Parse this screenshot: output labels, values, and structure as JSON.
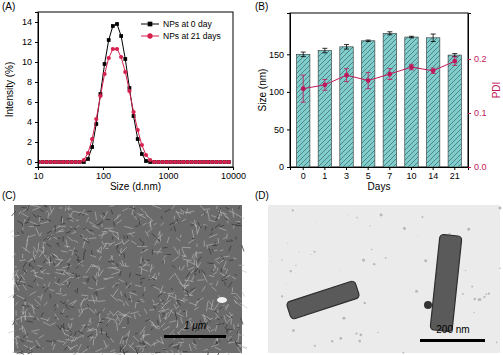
{
  "chart_data": [
    {
      "type": "line",
      "title": "(A)",
      "x_label": "Size (d.nm)",
      "y_label": "Intensity (%)",
      "log": "x",
      "xlim": [
        10,
        10000
      ],
      "xticks": [
        10,
        100,
        1000,
        10000
      ],
      "ylim": [
        -0.5,
        15
      ],
      "yticks": [
        0,
        2,
        4,
        6,
        8,
        10,
        12,
        14
      ],
      "legend": "upper right",
      "x": [
        10.1,
        11.7,
        13.54,
        15.69,
        18.17,
        21.04,
        24.36,
        28.21,
        32.67,
        37.84,
        43.82,
        50.75,
        58.77,
        68.06,
        78.82,
        91.28,
        105.7,
        122.4,
        141.8,
        164.2,
        190.1,
        220.2,
        255,
        295.3,
        342,
        396.1,
        458.7,
        531.2,
        615.1,
        712.4,
        825,
        955.4,
        1106,
        1281,
        1484,
        1718,
        1990,
        2305,
        2669,
        3091,
        3580,
        4145,
        4801,
        5560,
        6439,
        7456,
        8635
      ],
      "series": [
        {
          "name": "NPs at 0 day",
          "color": "#000000",
          "marker": "square",
          "values": [
            0,
            0,
            0,
            0,
            0,
            0,
            0,
            0,
            0,
            0,
            0,
            0,
            0.3,
            1.5,
            3.8,
            6.8,
            9.8,
            12.2,
            13.6,
            13.8,
            12.6,
            10.3,
            7.4,
            4.6,
            2.3,
            0.8,
            0.1,
            0,
            0,
            0,
            0,
            0,
            0,
            0,
            0,
            0,
            0,
            0,
            0,
            0,
            0,
            0,
            0,
            0,
            0,
            0,
            0
          ]
        },
        {
          "name": "NPs at 21 days",
          "color": "#d6204e",
          "marker": "circle",
          "values": [
            0,
            0,
            0,
            0,
            0,
            0,
            0,
            0,
            0,
            0,
            0,
            0.2,
            0.9,
            2.3,
            4.3,
            6.6,
            8.8,
            10.4,
            11.3,
            11.3,
            10.5,
            9.0,
            7.1,
            5.0,
            3.2,
            1.7,
            0.7,
            0.2,
            0,
            0,
            0,
            0,
            0,
            0,
            0,
            0,
            0,
            0,
            0,
            0,
            0,
            0,
            0,
            0,
            0,
            0,
            0
          ]
        }
      ]
    },
    {
      "type": "bar",
      "title": "(B)",
      "x_label": "Days",
      "y_label": "Size (nm)",
      "y2_label": "PDI",
      "categories": [
        "0",
        "1",
        "3",
        "5",
        "7",
        "10",
        "14",
        "21"
      ],
      "ylim": [
        0,
        205
      ],
      "yticks": [
        0,
        50,
        100,
        150
      ],
      "y2lim": [
        0,
        0.285
      ],
      "y2ticks": [
        {
          "value": 0,
          "label": "0.0"
        },
        0.1,
        0.2
      ],
      "series": [
        {
          "type": "bar",
          "color": "#7fcdcd",
          "values": [
            150,
            155,
            160,
            168,
            178,
            173,
            172,
            149
          ],
          "errors": [
            3,
            3,
            3,
            1,
            2,
            1,
            5,
            2
          ]
        },
        {
          "type": "line",
          "axis": "y2",
          "color": "#c2185b",
          "marker": "circle",
          "values": [
            0.145,
            0.152,
            0.17,
            0.16,
            0.172,
            0.185,
            0.178,
            0.196
          ],
          "errors": [
            0.025,
            0.01,
            0.012,
            0.015,
            0.01,
            0.005,
            0.005,
            0.008
          ]
        }
      ]
    },
    {
      "type": "image",
      "title": "(C)",
      "annotations": [
        "1 μm"
      ]
    },
    {
      "type": "image",
      "title": "(D)",
      "annotations": [
        "200 nm"
      ]
    }
  ]
}
